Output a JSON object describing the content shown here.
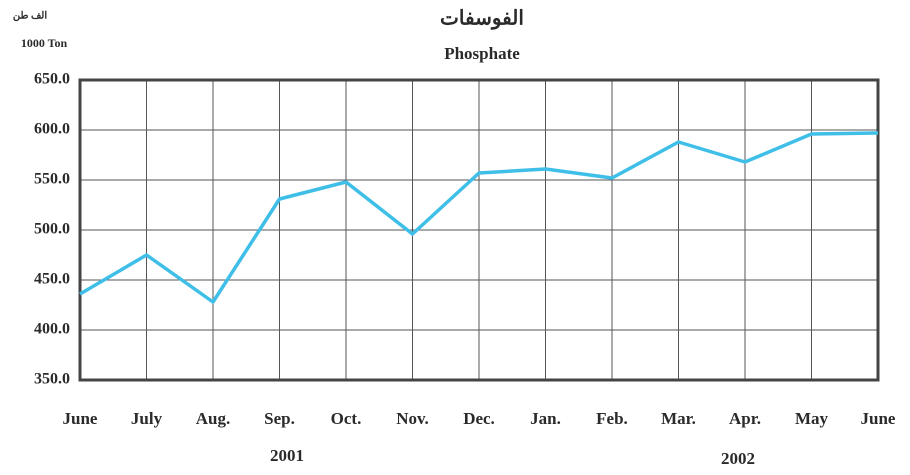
{
  "chart_data": {
    "type": "line",
    "title": "الفوسفات",
    "subtitle": "Phosphate",
    "unit_labels": [
      "الف طن",
      "1000 Ton"
    ],
    "categories": [
      "June",
      "July",
      "Aug.",
      "Sep.",
      "Oct.",
      "Nov.",
      "Dec.",
      "Jan.",
      "Feb.",
      "Mar.",
      "Apr.",
      "May",
      "June"
    ],
    "year_labels": [
      "2001",
      "2002"
    ],
    "series": [
      {
        "name": "Phosphate",
        "color": "#3fbfe8",
        "values": [
          436,
          475,
          428,
          531,
          548,
          496,
          557,
          561,
          552,
          588,
          568,
          596,
          597
        ]
      }
    ],
    "ylim": [
      350,
      650
    ],
    "yticks": [
      {
        "value": 350,
        "label": "350.0"
      },
      {
        "value": 400,
        "label": "400.0"
      },
      {
        "value": 450,
        "label": "450.0"
      },
      {
        "value": 500,
        "label": "500.0"
      },
      {
        "value": 550,
        "label": "550.0"
      },
      {
        "value": 600,
        "label": "600.0"
      },
      {
        "value": 650,
        "label": "650.0"
      }
    ],
    "grid": true
  }
}
